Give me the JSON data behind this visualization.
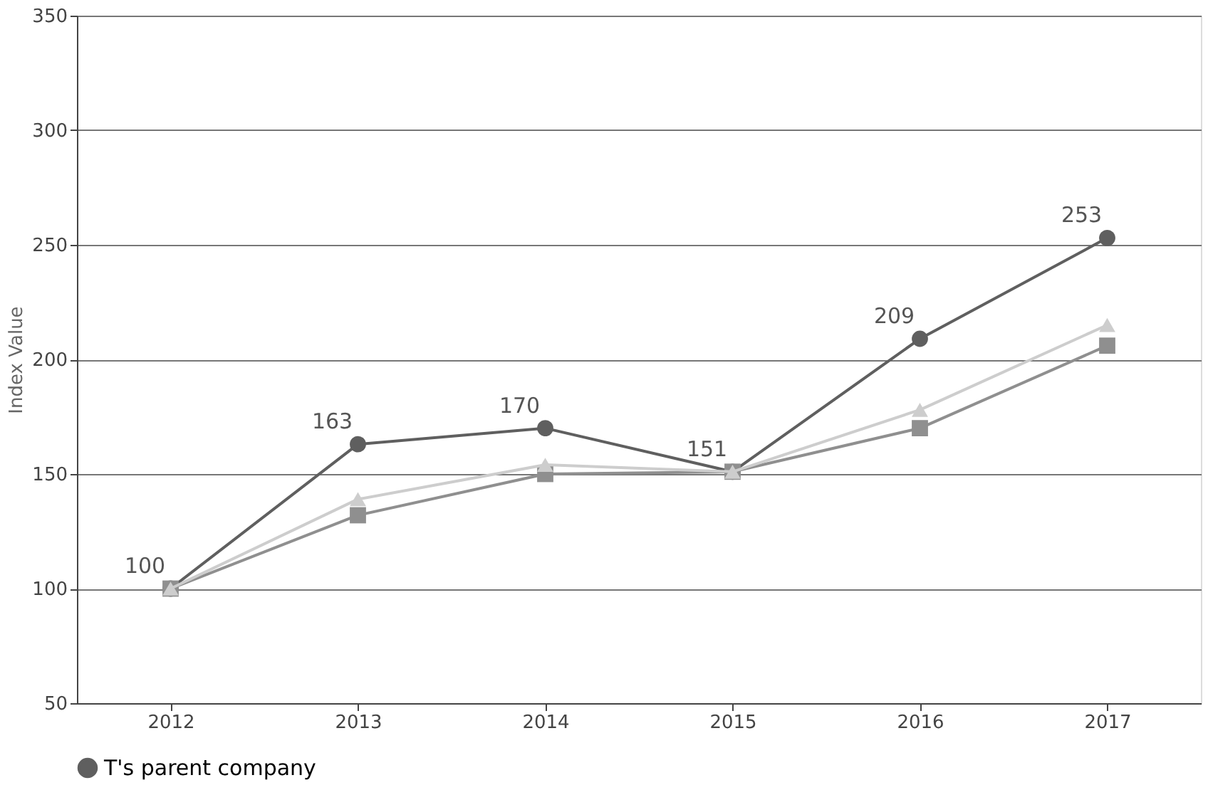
{
  "chart_data": {
    "type": "line",
    "ylabel": "Index Value",
    "categories": [
      "2012",
      "2013",
      "2014",
      "2015",
      "2016",
      "2017"
    ],
    "series": [
      {
        "name": "T's parent company",
        "color": "#5f5f5f",
        "marker": "circle",
        "values": [
          100,
          163,
          170,
          151,
          209,
          253
        ],
        "value_labels": [
          "100",
          "163",
          "170",
          "151",
          "209",
          "253"
        ]
      },
      {
        "color": "#8f8f8f",
        "marker": "square",
        "values": [
          100,
          132,
          150,
          151,
          170,
          206
        ]
      },
      {
        "color": "#cdcdcd",
        "marker": "triangle",
        "values": [
          100,
          139,
          154,
          151,
          178,
          215
        ]
      }
    ],
    "ylim": [
      50,
      350
    ],
    "yticks": [
      50,
      100,
      150,
      200,
      250,
      300,
      350
    ],
    "grid": "y",
    "legend": "bottom"
  }
}
